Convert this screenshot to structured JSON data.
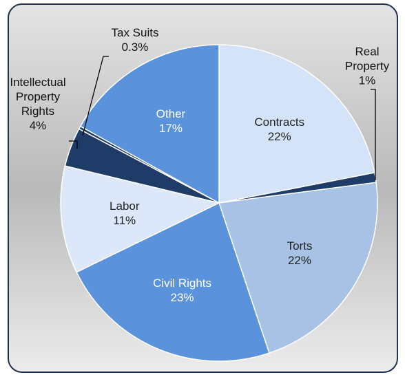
{
  "chart_data": {
    "type": "pie",
    "categories": [
      "Contracts",
      "Real Property",
      "Torts",
      "Civil Rights",
      "Labor",
      "Intellectual Property Rights",
      "Tax Suits",
      "Other"
    ],
    "values": [
      22,
      1,
      22,
      23,
      11,
      4,
      0.3,
      17
    ],
    "value_labels": [
      "22%",
      "1%",
      "22%",
      "23%",
      "11%",
      "4%",
      "0.3%",
      "17%"
    ],
    "colors": [
      "#d4e3f7",
      "#1f3c68",
      "#a8c2e6",
      "#5a92dc",
      "#dce8f9",
      "#1f3c68",
      "#1f3c68",
      "#5a92dc"
    ]
  }
}
